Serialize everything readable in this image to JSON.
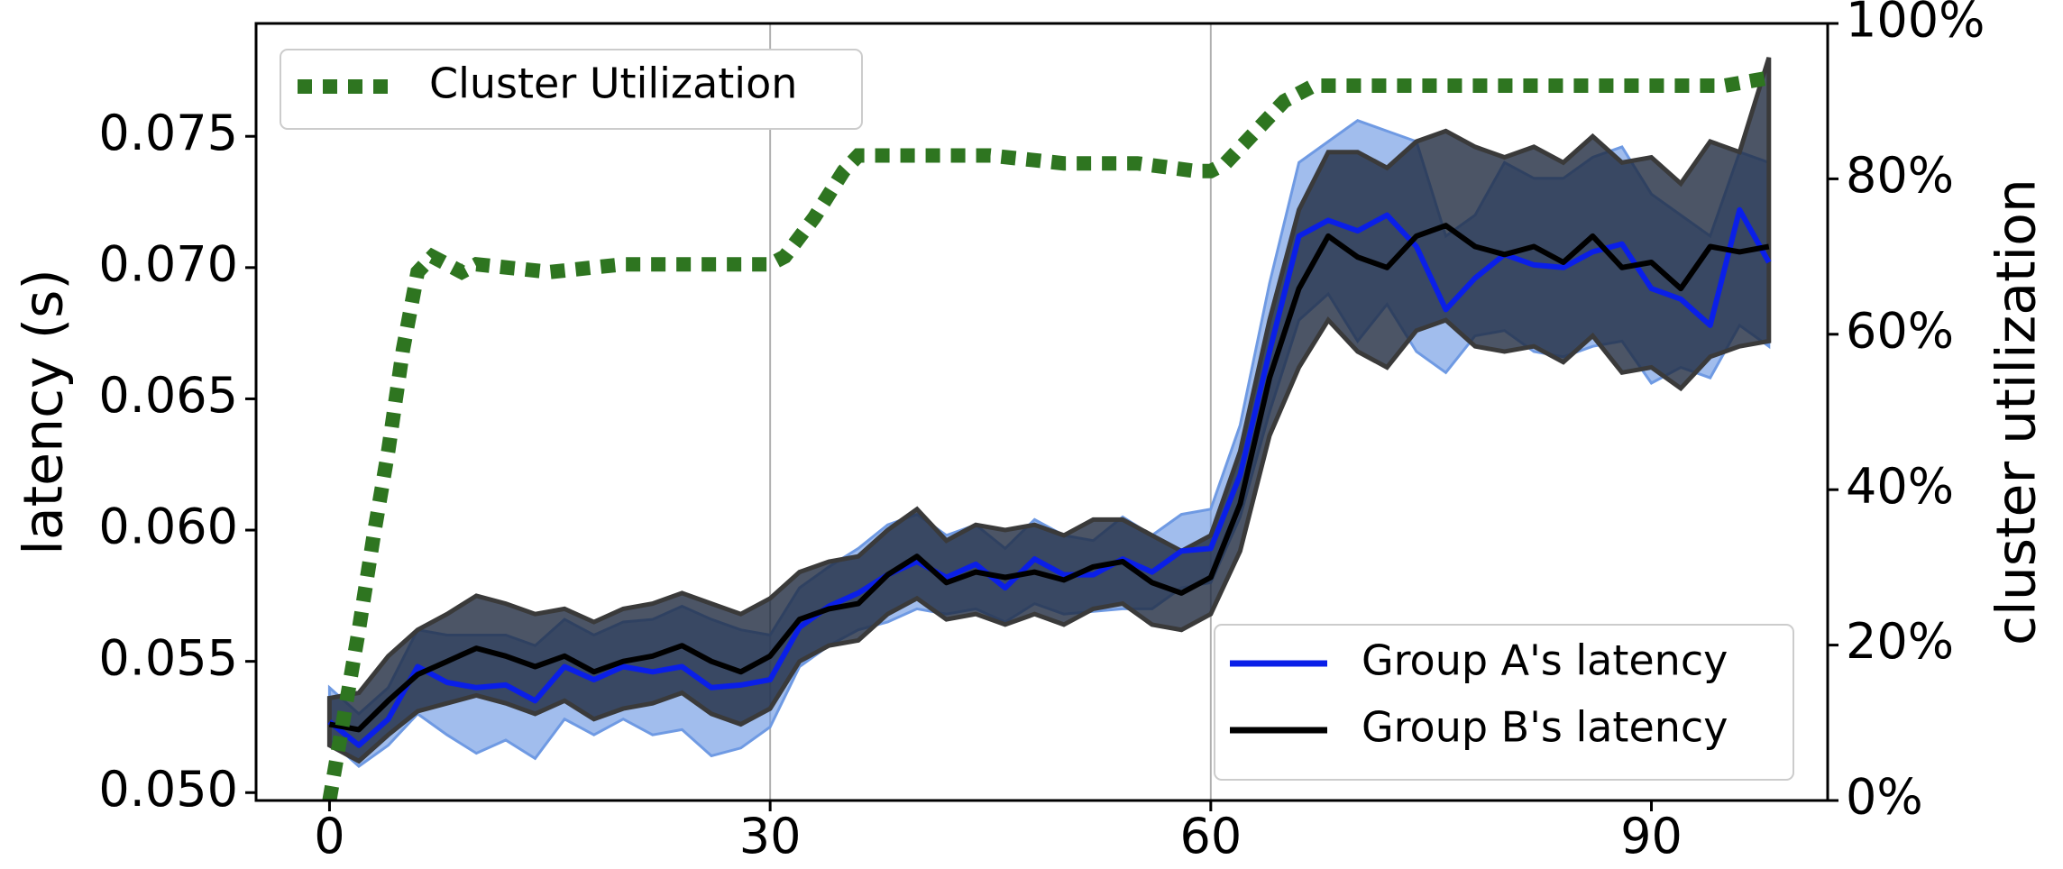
{
  "chart_data": {
    "type": "line",
    "title": "",
    "xlabel": "",
    "ylabel": "latency (s)",
    "y2label": "cluster utilization",
    "xlim": [
      -5,
      102
    ],
    "ylim": [
      0.0497,
      0.0793
    ],
    "y2lim": [
      0,
      100
    ],
    "xticks": [
      0,
      30,
      60,
      90
    ],
    "xtick_labels": [
      "0",
      "30",
      "60",
      "90"
    ],
    "yticks": [
      0.05,
      0.055,
      0.06,
      0.065,
      0.07,
      0.075
    ],
    "ytick_labels": [
      "0.050",
      "0.055",
      "0.060",
      "0.065",
      "0.070",
      "0.075"
    ],
    "y2ticks": [
      0,
      20,
      40,
      60,
      80,
      100
    ],
    "y2tick_labels": [
      "0%",
      "20%",
      "40%",
      "60%",
      "80%",
      "100%"
    ],
    "vlines": [
      30,
      60
    ],
    "grid": "vertical lines at x=30 and x=60",
    "legend_top": {
      "position": "top-left",
      "entries": [
        "Cluster Utilization"
      ]
    },
    "legend_bottom": {
      "position": "lower-right",
      "entries": [
        "Group A's latency",
        "Group B's latency"
      ]
    },
    "colors": {
      "group_a": "#0a1fe8",
      "group_a_band": "#6f9ae3",
      "group_b": "#000000",
      "group_b_band": "#1f2a40",
      "utilization": "#2e7520"
    },
    "series": [
      {
        "name": "Group A's latency",
        "axis": "left",
        "x": [
          0,
          2,
          4,
          6,
          8,
          10,
          12,
          14,
          16,
          18,
          20,
          22,
          24,
          26,
          28,
          30,
          32,
          34,
          36,
          38,
          40,
          42,
          44,
          46,
          48,
          50,
          52,
          54,
          56,
          58,
          60,
          62,
          64,
          66,
          68,
          70,
          72,
          74,
          76,
          78,
          80,
          82,
          84,
          86,
          88,
          90,
          92,
          94,
          96,
          98
        ],
        "y": [
          0.0527,
          0.0518,
          0.0528,
          0.0548,
          0.0542,
          0.054,
          0.0541,
          0.0535,
          0.0548,
          0.0543,
          0.0548,
          0.0546,
          0.0548,
          0.054,
          0.0541,
          0.0543,
          0.0563,
          0.0571,
          0.0576,
          0.0583,
          0.0588,
          0.0582,
          0.0587,
          0.0578,
          0.0589,
          0.0583,
          0.0583,
          0.0589,
          0.0584,
          0.0592,
          0.0593,
          0.0621,
          0.0668,
          0.0712,
          0.0718,
          0.0714,
          0.072,
          0.0708,
          0.0684,
          0.0696,
          0.0705,
          0.0701,
          0.07,
          0.0706,
          0.0709,
          0.0692,
          0.0688,
          0.0678,
          0.0722,
          0.0702
        ],
        "band_low": [
          0.052,
          0.051,
          0.0518,
          0.053,
          0.0522,
          0.0515,
          0.052,
          0.0513,
          0.0528,
          0.0522,
          0.0528,
          0.0522,
          0.0524,
          0.0514,
          0.0517,
          0.0525,
          0.0548,
          0.0556,
          0.0562,
          0.0565,
          0.057,
          0.0568,
          0.057,
          0.0565,
          0.0572,
          0.0568,
          0.0569,
          0.057,
          0.057,
          0.0578,
          0.058,
          0.0605,
          0.0645,
          0.068,
          0.069,
          0.0672,
          0.0686,
          0.0668,
          0.066,
          0.0674,
          0.0676,
          0.0668,
          0.0666,
          0.067,
          0.0672,
          0.0656,
          0.0662,
          0.0658,
          0.0678,
          0.067
        ],
        "band_high": [
          0.054,
          0.053,
          0.054,
          0.0562,
          0.056,
          0.056,
          0.056,
          0.0556,
          0.0566,
          0.056,
          0.0565,
          0.0566,
          0.0571,
          0.0566,
          0.0562,
          0.056,
          0.0578,
          0.0586,
          0.0593,
          0.0602,
          0.0606,
          0.0598,
          0.0602,
          0.0593,
          0.0604,
          0.0598,
          0.0596,
          0.0605,
          0.0598,
          0.0606,
          0.0608,
          0.064,
          0.0694,
          0.074,
          0.0748,
          0.0756,
          0.0752,
          0.0748,
          0.0712,
          0.072,
          0.074,
          0.0734,
          0.0734,
          0.0742,
          0.0746,
          0.0728,
          0.072,
          0.0712,
          0.0744,
          0.074
        ]
      },
      {
        "name": "Group B's latency",
        "axis": "left",
        "x": [
          0,
          2,
          4,
          6,
          8,
          10,
          12,
          14,
          16,
          18,
          20,
          22,
          24,
          26,
          28,
          30,
          32,
          34,
          36,
          38,
          40,
          42,
          44,
          46,
          48,
          50,
          52,
          54,
          56,
          58,
          60,
          62,
          64,
          66,
          68,
          70,
          72,
          74,
          76,
          78,
          80,
          82,
          84,
          86,
          88,
          90,
          92,
          94,
          96,
          98
        ],
        "y": [
          0.0526,
          0.0524,
          0.0535,
          0.0545,
          0.055,
          0.0555,
          0.0552,
          0.0548,
          0.0552,
          0.0546,
          0.055,
          0.0552,
          0.0556,
          0.055,
          0.0546,
          0.0552,
          0.0566,
          0.057,
          0.0572,
          0.0583,
          0.059,
          0.058,
          0.0584,
          0.0582,
          0.0584,
          0.0581,
          0.0586,
          0.0588,
          0.058,
          0.0576,
          0.0582,
          0.061,
          0.0658,
          0.0692,
          0.0712,
          0.0704,
          0.07,
          0.0712,
          0.0716,
          0.0708,
          0.0705,
          0.0708,
          0.0702,
          0.0712,
          0.07,
          0.0702,
          0.0692,
          0.0708,
          0.0706,
          0.0708
        ],
        "band_low": [
          0.0518,
          0.0512,
          0.0522,
          0.0531,
          0.0534,
          0.0537,
          0.0534,
          0.053,
          0.0535,
          0.0528,
          0.0532,
          0.0534,
          0.0538,
          0.053,
          0.0526,
          0.0532,
          0.055,
          0.0556,
          0.0558,
          0.0568,
          0.0574,
          0.0566,
          0.0568,
          0.0564,
          0.0568,
          0.0564,
          0.057,
          0.0572,
          0.0564,
          0.0562,
          0.0568,
          0.0592,
          0.0636,
          0.0662,
          0.068,
          0.0668,
          0.0662,
          0.0676,
          0.068,
          0.067,
          0.0668,
          0.067,
          0.0664,
          0.0674,
          0.066,
          0.0662,
          0.0654,
          0.0666,
          0.067,
          0.0672
        ],
        "band_high": [
          0.0536,
          0.0538,
          0.0552,
          0.0562,
          0.0568,
          0.0575,
          0.0572,
          0.0568,
          0.057,
          0.0565,
          0.057,
          0.0572,
          0.0576,
          0.0572,
          0.0568,
          0.0574,
          0.0584,
          0.0588,
          0.059,
          0.06,
          0.0608,
          0.0596,
          0.0602,
          0.06,
          0.0602,
          0.0598,
          0.0604,
          0.0604,
          0.0598,
          0.0592,
          0.0598,
          0.063,
          0.068,
          0.0722,
          0.0744,
          0.0744,
          0.0738,
          0.0748,
          0.0752,
          0.0746,
          0.0742,
          0.0746,
          0.074,
          0.075,
          0.074,
          0.0742,
          0.0732,
          0.0748,
          0.0744,
          0.078
        ]
      },
      {
        "name": "Cluster Utilization",
        "axis": "right",
        "x": [
          0,
          1,
          2,
          3,
          4,
          5,
          6,
          7,
          8,
          9,
          10,
          15,
          20,
          25,
          29,
          30,
          31,
          33,
          35,
          36,
          40,
          45,
          50,
          55,
          59,
          60,
          61,
          63,
          65,
          67,
          70,
          75,
          80,
          85,
          90,
          95,
          98
        ],
        "y": [
          0,
          11,
          22,
          34,
          45,
          58,
          68,
          70,
          69,
          68,
          69,
          68,
          69,
          69,
          69,
          69,
          70,
          75,
          81,
          83,
          83,
          83,
          82,
          82,
          81,
          81,
          82,
          86,
          90,
          92,
          92,
          92,
          92,
          92,
          92,
          92,
          93
        ]
      }
    ]
  }
}
